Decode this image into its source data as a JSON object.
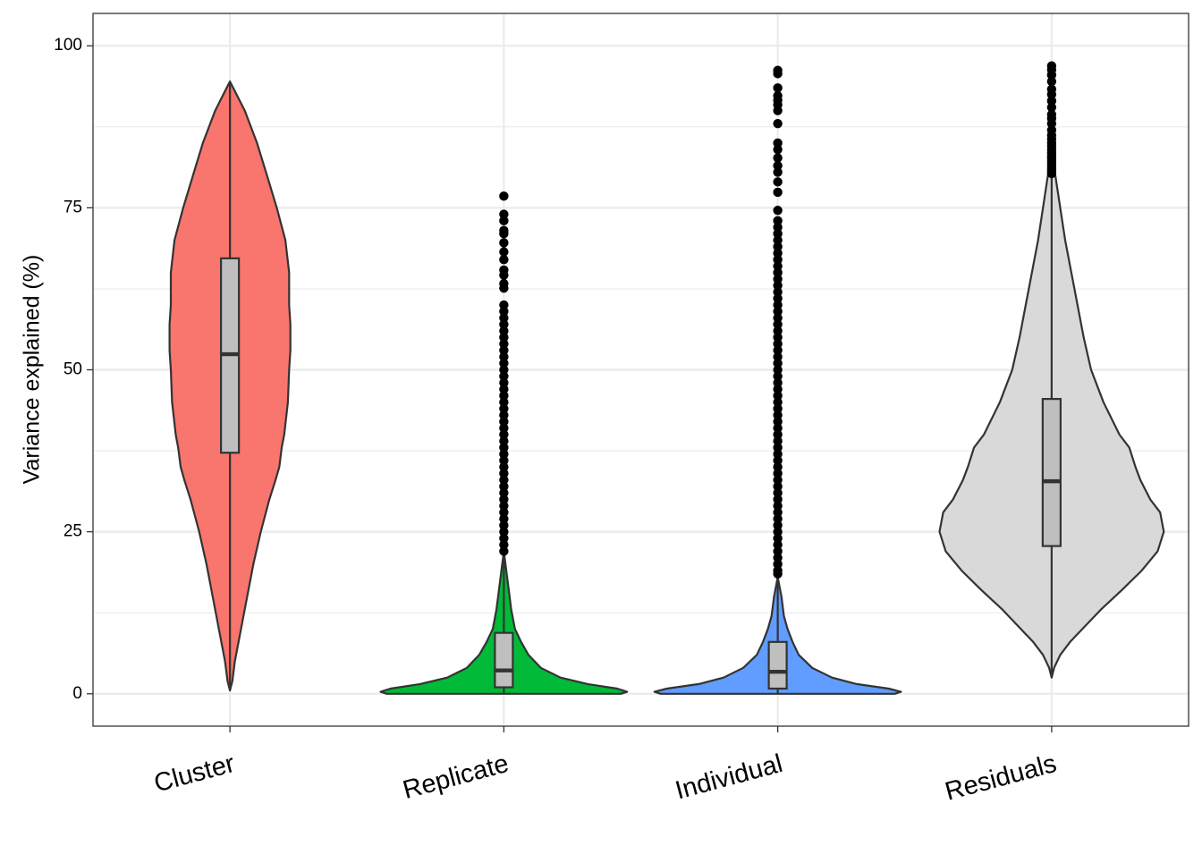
{
  "chart_data": {
    "type": "violin",
    "title": "",
    "xlabel": "",
    "ylabel": "Variance explained (%)",
    "ylim": [
      -5,
      105
    ],
    "yticks": [
      0,
      25,
      50,
      75,
      100
    ],
    "grid": true,
    "legend": "none",
    "categories": [
      "Cluster",
      "Replicate",
      "Individual",
      "Residuals"
    ],
    "series": [
      {
        "category": "Cluster",
        "color": "#F8766D",
        "box": {
          "q1": 37.2,
          "median": 52.4,
          "q3": 67.2,
          "whisker_low": 0.5,
          "whisker_high": 94.5
        },
        "density": [
          [
            0.5,
            0.0
          ],
          [
            2,
            0.02
          ],
          [
            5,
            0.04
          ],
          [
            10,
            0.09
          ],
          [
            15,
            0.14
          ],
          [
            20,
            0.19
          ],
          [
            25,
            0.25
          ],
          [
            30,
            0.32
          ],
          [
            33,
            0.37
          ],
          [
            35,
            0.4
          ],
          [
            38,
            0.42
          ],
          [
            40,
            0.44
          ],
          [
            45,
            0.47
          ],
          [
            50,
            0.48
          ],
          [
            53,
            0.49
          ],
          [
            57,
            0.49
          ],
          [
            60,
            0.48
          ],
          [
            65,
            0.48
          ],
          [
            70,
            0.45
          ],
          [
            75,
            0.38
          ],
          [
            80,
            0.3
          ],
          [
            85,
            0.22
          ],
          [
            90,
            0.12
          ],
          [
            93,
            0.04
          ],
          [
            94.5,
            0.0
          ]
        ],
        "outliers": []
      },
      {
        "category": "Replicate",
        "color": "#00BA38",
        "box": {
          "q1": 1.0,
          "median": 3.6,
          "q3": 9.4,
          "whisker_low": 0.0,
          "whisker_high": 22.0
        },
        "density": [
          [
            0,
            0.95
          ],
          [
            0.3,
            1.0
          ],
          [
            0.8,
            0.92
          ],
          [
            1.5,
            0.68
          ],
          [
            2.5,
            0.46
          ],
          [
            4,
            0.3
          ],
          [
            6,
            0.2
          ],
          [
            8,
            0.14
          ],
          [
            10,
            0.09
          ],
          [
            13,
            0.06
          ],
          [
            16,
            0.04
          ],
          [
            19,
            0.02
          ],
          [
            22,
            0.0
          ]
        ],
        "outliers": [
          22,
          23,
          24,
          25,
          26,
          27,
          28,
          29,
          30,
          31,
          32,
          33,
          34,
          35,
          36,
          37,
          38,
          39,
          40,
          41,
          42,
          43,
          44,
          45,
          46,
          47,
          48,
          49,
          50,
          51,
          52,
          53,
          54,
          55,
          56,
          57,
          58,
          59,
          60,
          62.6,
          63.3,
          64.6,
          65.4,
          67,
          68.2,
          69.6,
          71,
          71.5,
          73,
          74,
          76.8
        ]
      },
      {
        "category": "Individual",
        "color": "#619CFF",
        "box": {
          "q1": 0.8,
          "median": 3.4,
          "q3": 8.0,
          "whisker_low": 0.0,
          "whisker_high": 18.0
        },
        "density": [
          [
            0,
            0.95
          ],
          [
            0.3,
            1.0
          ],
          [
            0.8,
            0.9
          ],
          [
            1.5,
            0.64
          ],
          [
            2.5,
            0.44
          ],
          [
            4,
            0.28
          ],
          [
            6,
            0.17
          ],
          [
            8,
            0.12
          ],
          [
            10,
            0.08
          ],
          [
            12,
            0.05
          ],
          [
            15,
            0.03
          ],
          [
            18,
            0.0
          ]
        ],
        "outliers": [
          18.5,
          19,
          20,
          21,
          22,
          23,
          24,
          25,
          26,
          27,
          28,
          29,
          30,
          31,
          32,
          33,
          34,
          35,
          36,
          37,
          38,
          39,
          40,
          41,
          42,
          43,
          44,
          45,
          46,
          47,
          48,
          49,
          50,
          51,
          52,
          53,
          54,
          55,
          56,
          57,
          58,
          59,
          60,
          61,
          62,
          63,
          64,
          65,
          66,
          67,
          68,
          69,
          70,
          71,
          72,
          73,
          74.6,
          77.4,
          79,
          80.5,
          81.5,
          82.7,
          84,
          85,
          88,
          90,
          90.9,
          91.6,
          92.3,
          93.5,
          95.7,
          96.2
        ]
      },
      {
        "category": "Residuals",
        "color": "#D9D9D9",
        "box": {
          "q1": 22.8,
          "median": 32.8,
          "q3": 45.5,
          "whisker_low": 2.5,
          "whisker_high": 80.0
        },
        "density": [
          [
            2.5,
            0.0
          ],
          [
            4,
            0.02
          ],
          [
            6,
            0.07
          ],
          [
            8,
            0.15
          ],
          [
            10,
            0.25
          ],
          [
            13,
            0.4
          ],
          [
            16,
            0.57
          ],
          [
            19,
            0.73
          ],
          [
            22,
            0.86
          ],
          [
            25,
            0.91
          ],
          [
            28,
            0.88
          ],
          [
            30,
            0.8
          ],
          [
            33,
            0.72
          ],
          [
            35,
            0.68
          ],
          [
            38,
            0.63
          ],
          [
            40,
            0.55
          ],
          [
            45,
            0.42
          ],
          [
            50,
            0.32
          ],
          [
            55,
            0.26
          ],
          [
            60,
            0.21
          ],
          [
            65,
            0.16
          ],
          [
            70,
            0.11
          ],
          [
            75,
            0.07
          ],
          [
            80,
            0.03
          ],
          [
            83,
            0.0
          ]
        ],
        "outliers": [
          80.3,
          80.6,
          81,
          81.4,
          81.8,
          82.2,
          82.6,
          83,
          83.5,
          84,
          84.5,
          85,
          85.6,
          86.2,
          87,
          88,
          88.8,
          89.4,
          90.5,
          91.5,
          92.5,
          93.3,
          94.5,
          95.5,
          96.3,
          96.9
        ]
      }
    ]
  }
}
